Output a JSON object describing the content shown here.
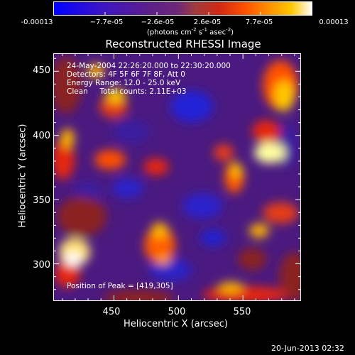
{
  "chart_data": {
    "type": "heatmap",
    "title": "Reconstructed RHESSI Image",
    "xlabel": "Heliocentric X (arcsec)",
    "ylabel": "Heliocentric Y (arcsec)",
    "xlim": [
      403,
      595
    ],
    "ylim": [
      271,
      464
    ],
    "x_ticks": [
      450,
      500,
      550
    ],
    "y_ticks": [
      300,
      350,
      400,
      450
    ],
    "colorbar": {
      "range": [
        -0.00013,
        0.00013
      ],
      "tick_labels": [
        "-0.00013",
        "−7.7e-05",
        "−2.6e-05",
        "2.6e-05",
        "7.7e-05",
        "0.00013"
      ],
      "units_text": "(photons cm",
      "units_parts": [
        "-2",
        " s",
        "-1",
        " asec",
        "-2",
        ")"
      ],
      "colormap": [
        "#0000ff",
        "#3c14c8",
        "#5a1e8c",
        "#6e2878",
        "#a03c3c",
        "#d22814",
        "#ff5000",
        "#ff9600",
        "#ffc800",
        "#ffffff"
      ]
    },
    "annotations": [
      "24-May-2004 22:26:20.000 to 22:30:20.000",
      "Detectors: 4F 5F 6F 7F 8F, Att 0",
      "Energy Range: 12.0 - 25.0 keV",
      "Clean     Total counts: 2.11E+03"
    ],
    "peak_label": "Position of Peak = [419,305]"
  },
  "timestamp": "20-Jun-2013 02:32"
}
